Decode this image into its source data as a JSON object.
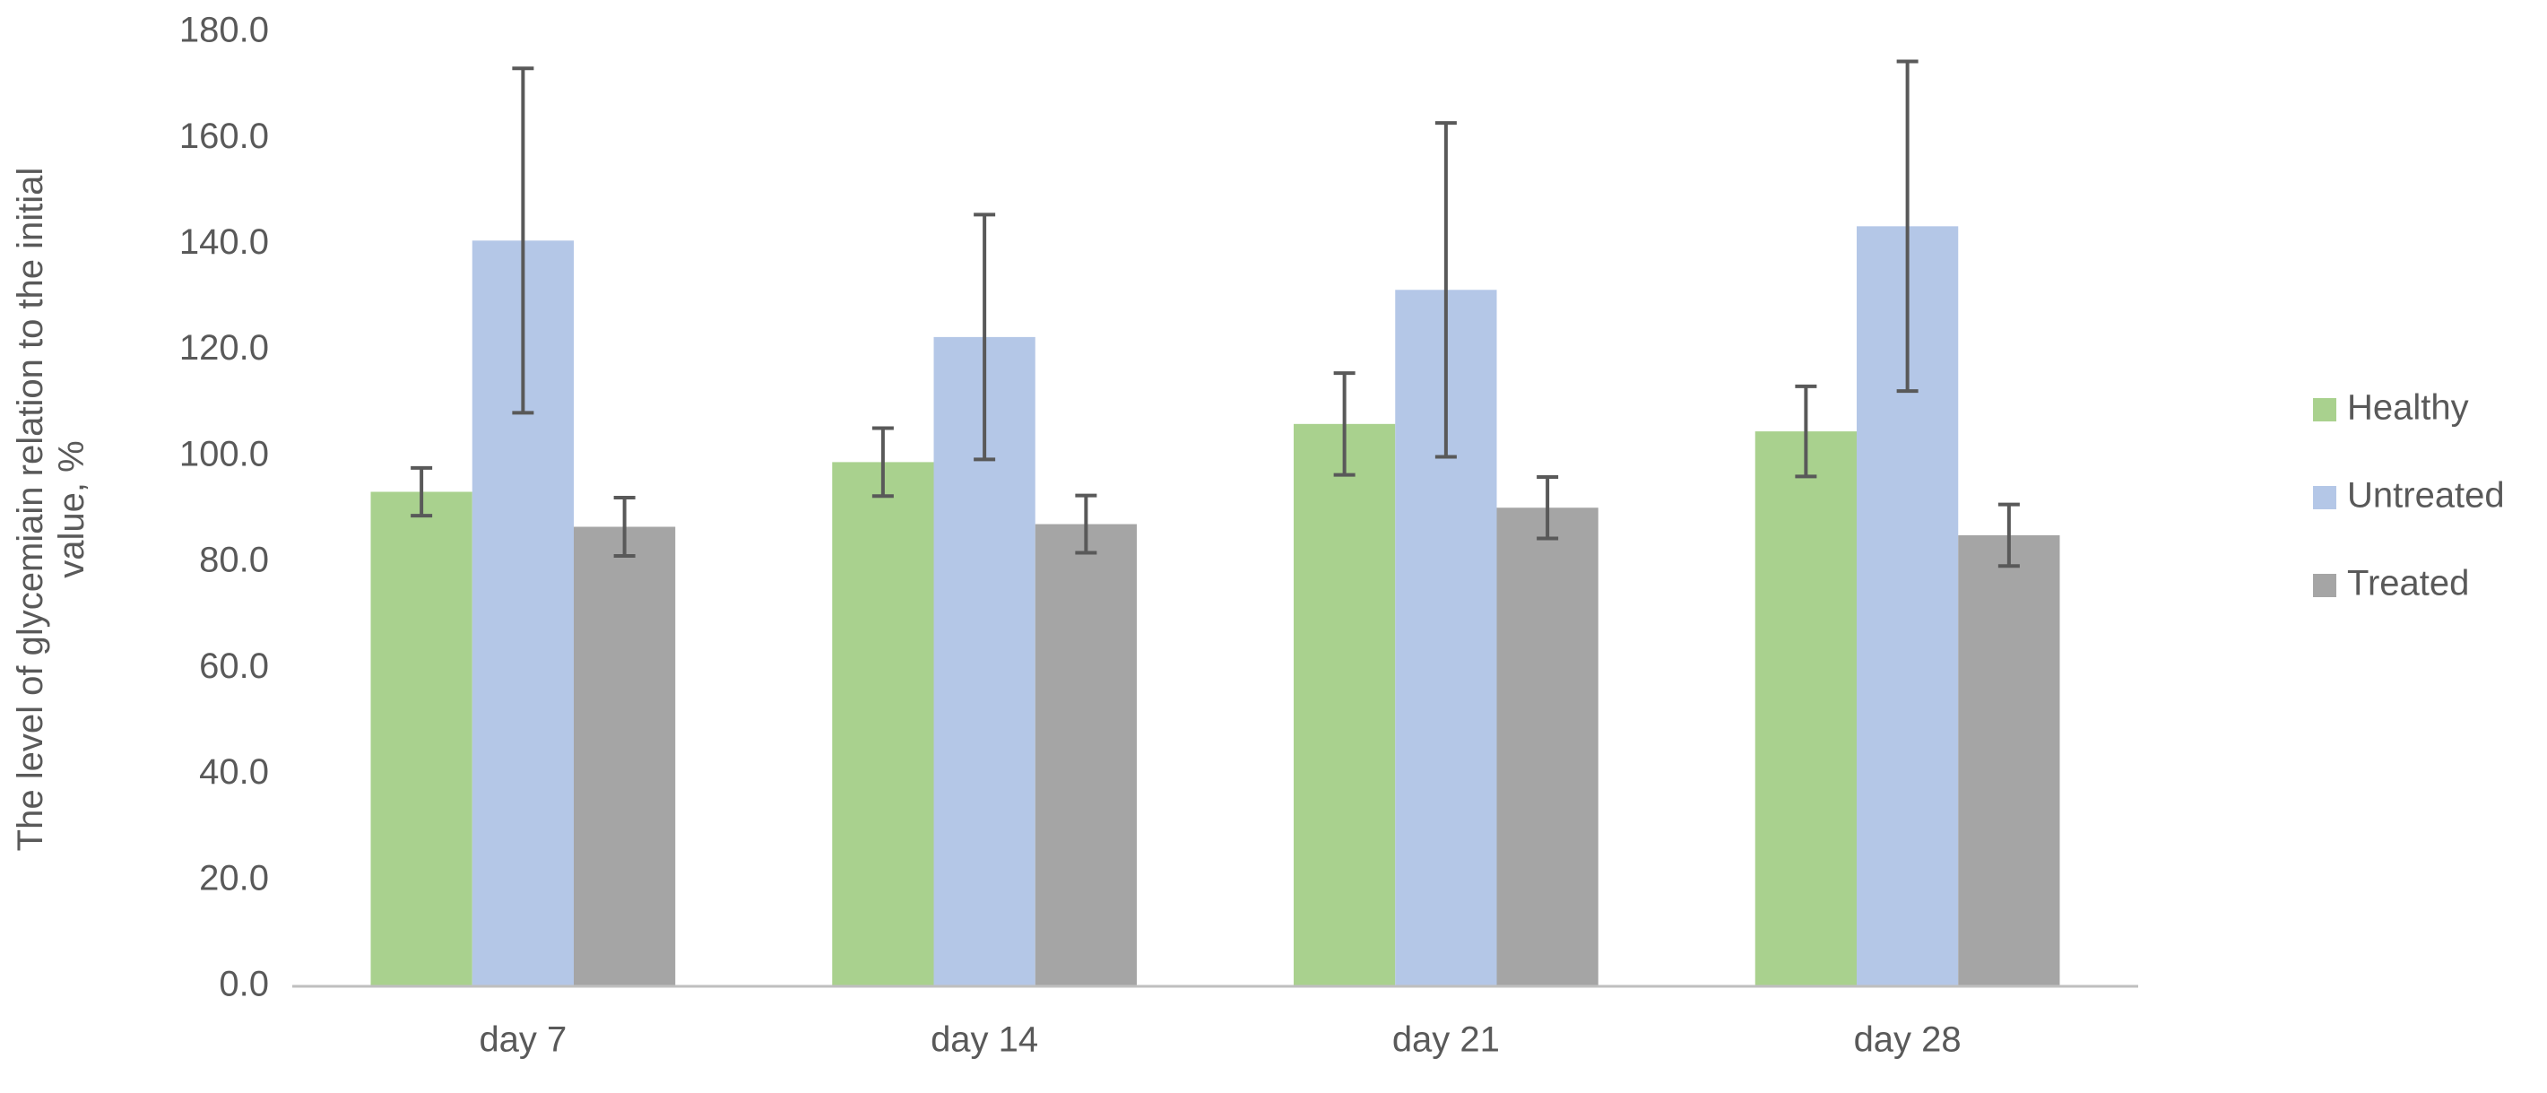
{
  "chart_data": {
    "type": "bar",
    "y_label": "The level of glycemiain relation to the initial value, %",
    "categories": [
      "day 7",
      "day 14",
      "day 21",
      "day 28"
    ],
    "series": [
      {
        "name": "Healthy",
        "color": "#a9d18e",
        "values": [
          93.3,
          98.9,
          106.1,
          104.7
        ],
        "errors": [
          4.5,
          6.4,
          9.6,
          8.5
        ]
      },
      {
        "name": "Untreated",
        "color": "#b4c7e7",
        "values": [
          140.7,
          122.5,
          131.4,
          143.4
        ],
        "errors": [
          32.5,
          23.1,
          31.5,
          31.1
        ]
      },
      {
        "name": "Treated",
        "color": "#a5a5a5",
        "values": [
          86.7,
          87.2,
          90.3,
          85.1
        ],
        "errors": [
          5.5,
          5.4,
          5.8,
          5.8
        ]
      }
    ],
    "ylim": [
      0,
      180
    ],
    "yticks": [
      {
        "value": 0,
        "label": "0.0"
      },
      {
        "value": 20,
        "label": "20.0"
      },
      {
        "value": 40,
        "label": "40.0"
      },
      {
        "value": 60,
        "label": "60.0"
      },
      {
        "value": 80,
        "label": "80.0"
      },
      {
        "value": 100,
        "label": "100.0"
      },
      {
        "value": 120,
        "label": "120.0"
      },
      {
        "value": 140,
        "label": "140.0"
      },
      {
        "value": 160,
        "label": "160.0"
      },
      {
        "value": 180,
        "label": "180.0"
      }
    ],
    "grid": false,
    "legend": "right",
    "error_color": "#595959"
  }
}
